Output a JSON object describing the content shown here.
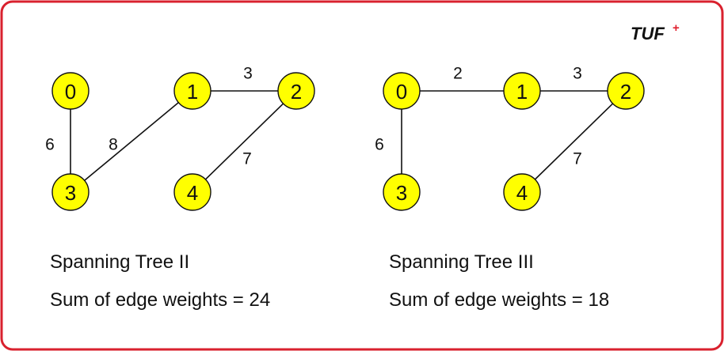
{
  "logo": {
    "text": "TUF",
    "superscript": "+"
  },
  "colors": {
    "border": "#d9212e",
    "node_fill": "#ffff00",
    "edge": "#111111"
  },
  "trees": [
    {
      "id": "tree2",
      "title": "Spanning Tree II",
      "sum_text": "Sum of edge weights = 24",
      "nodes": [
        "0",
        "1",
        "2",
        "3",
        "4"
      ],
      "edges": [
        {
          "from": "0",
          "to": "3",
          "weight": "6"
        },
        {
          "from": "1",
          "to": "3",
          "weight": "8"
        },
        {
          "from": "1",
          "to": "2",
          "weight": "3"
        },
        {
          "from": "2",
          "to": "4",
          "weight": "7"
        }
      ]
    },
    {
      "id": "tree3",
      "title": "Spanning Tree III",
      "sum_text": "Sum of edge weights = 18",
      "nodes": [
        "0",
        "1",
        "2",
        "3",
        "4"
      ],
      "edges": [
        {
          "from": "0",
          "to": "1",
          "weight": "2"
        },
        {
          "from": "1",
          "to": "2",
          "weight": "3"
        },
        {
          "from": "0",
          "to": "3",
          "weight": "6"
        },
        {
          "from": "2",
          "to": "4",
          "weight": "7"
        }
      ]
    }
  ]
}
